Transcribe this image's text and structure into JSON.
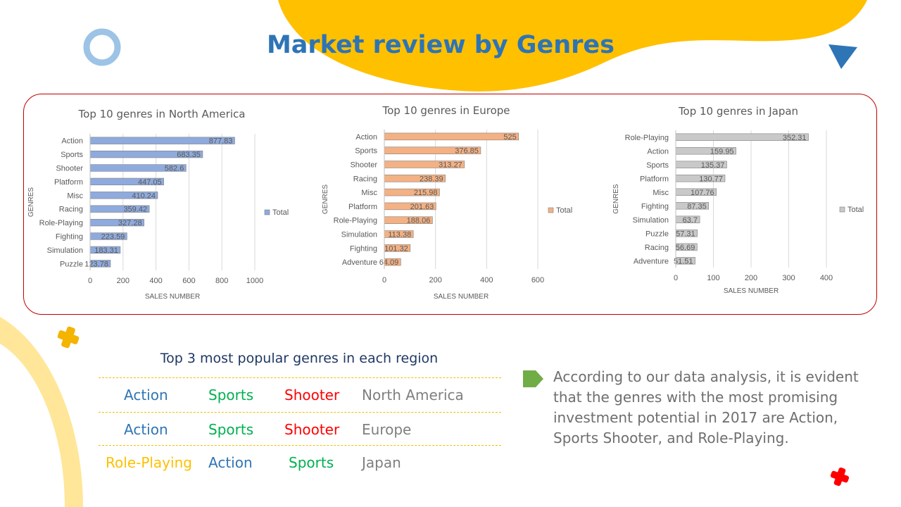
{
  "slide": {
    "title": "Market review by Genres"
  },
  "colors": {
    "title": "#2e74b5",
    "frame": "#c00000",
    "yellow": "#ffc000",
    "blue": "#2e75b6",
    "green": "#00b050",
    "red": "#ff0000",
    "gray": "#7f7f7f"
  },
  "chart_data": [
    {
      "type": "bar",
      "orientation": "horizontal",
      "title": "Top 10 genres in North America",
      "categories": [
        "Action",
        "Sports",
        "Shooter",
        "Platform",
        "Misc",
        "Racing",
        "Role-Playing",
        "Fighting",
        "Simulation",
        "Puzzle"
      ],
      "series": [
        {
          "name": "Total",
          "values": [
            877.83,
            683.35,
            582.6,
            447.05,
            410.24,
            359.42,
            327.28,
            223.59,
            183.31,
            123.78
          ],
          "labels": [
            "877.83",
            "683.35",
            "582.6",
            "447.05",
            "410.24",
            "359.42",
            "327.28",
            "223.59",
            "183.31",
            "123.78"
          ]
        }
      ],
      "xlabel": "SALES NUMBER",
      "ylabel": "GENRES",
      "xlim": [
        0,
        1000
      ],
      "xticks": [
        "0",
        "200",
        "400",
        "600",
        "800",
        "1000"
      ],
      "grid": true,
      "legend": "right",
      "color": "#8faadc"
    },
    {
      "type": "bar",
      "orientation": "horizontal",
      "title": "Top 10 genres in Europe",
      "categories": [
        "Action",
        "Sports",
        "Shooter",
        "Racing",
        "Misc",
        "Platform",
        "Role-Playing",
        "Simulation",
        "Fighting",
        "Adventure"
      ],
      "series": [
        {
          "name": "Total",
          "values": [
            525,
            376.85,
            313.27,
            238.39,
            215.98,
            201.63,
            188.06,
            113.38,
            101.32,
            64.09
          ],
          "labels": [
            "525",
            "376.85",
            "313.27",
            "238.39",
            "215.98",
            "201.63",
            "188.06",
            "113.38",
            "101.32",
            "64.09"
          ]
        }
      ],
      "xlabel": "SALES NUMBER",
      "ylabel": "GENRES",
      "xlim": [
        0,
        600
      ],
      "xticks": [
        "0",
        "200",
        "400",
        "600"
      ],
      "grid": true,
      "legend": "right",
      "color": "#f4b183"
    },
    {
      "type": "bar",
      "orientation": "horizontal",
      "title": "Top 10 genres in Japan",
      "categories": [
        "Role-Playing",
        "Action",
        "Sports",
        "Platform",
        "Misc",
        "Fighting",
        "Simulation",
        "Puzzle",
        "Racing",
        "Adventure"
      ],
      "series": [
        {
          "name": "Total",
          "values": [
            352.31,
            159.95,
            135.37,
            130.77,
            107.76,
            87.35,
            63.7,
            57.31,
            56.69,
            51.51
          ],
          "labels": [
            "352.31",
            "159.95",
            "135.37",
            "130.77",
            "107.76",
            "87.35",
            "63.7",
            "57.31",
            "56.69",
            "51.51"
          ]
        }
      ],
      "xlabel": "SALES NUMBER",
      "ylabel": "GENRES",
      "xlim": [
        0,
        400
      ],
      "xticks": [
        "0",
        "100",
        "200",
        "300",
        "400"
      ],
      "grid": true,
      "legend": "right",
      "color": "#c9c9c9"
    }
  ],
  "top3": {
    "title": "Top 3 most popular genres in each region",
    "rows": [
      {
        "first": "Action",
        "second": "Sports",
        "third": "Shooter",
        "region": "North America"
      },
      {
        "first": "Action",
        "second": "Sports",
        "third": "Shooter",
        "region": "Europe"
      },
      {
        "first": "Role-Playing",
        "second": "Action",
        "third": "Sports",
        "region": "Japan"
      }
    ]
  },
  "conclusion": {
    "text": "According to our data analysis, it is evident that the genres with the most promising investment potential in 2017 are Action, Sports Shooter, and Role-Playing."
  }
}
